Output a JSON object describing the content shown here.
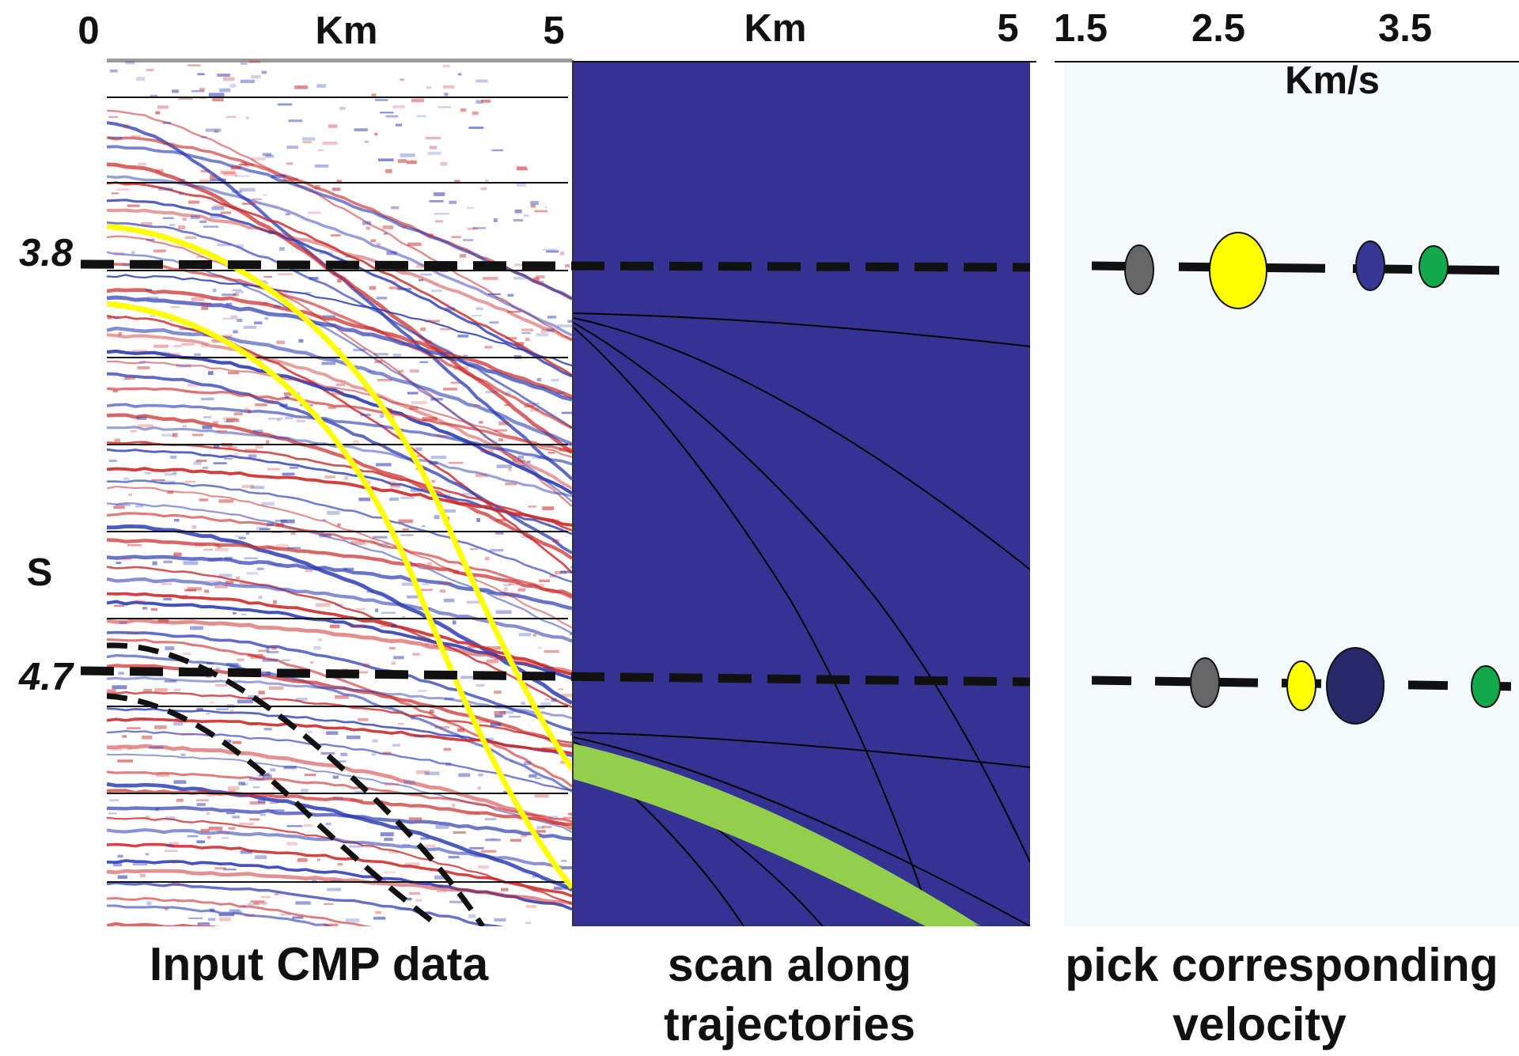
{
  "colors": {
    "seismic_red": "#cc2a2a",
    "seismic_blue": "#2a3ab5",
    "scan_panel": "#343393",
    "velocity_panel": "#f4fafa",
    "highlight_yellow": "#ffff00",
    "highlight_green": "#92cf4b",
    "dash": "#111111",
    "blob_gray": "#666666",
    "blob_yellow": "#ffff00",
    "blob_blue": "#363795",
    "blob_dark_blue": "#262869",
    "blob_green": "#12a84c"
  },
  "cmp_panel": {
    "axis_start": "0",
    "axis_unit": "Km",
    "axis_end": "5",
    "caption": "Input CMP data"
  },
  "scan_panel": {
    "axis_unit": "Km",
    "axis_end": "5",
    "caption_line1": "scan along",
    "caption_line2": "trajectories"
  },
  "velocity_panel": {
    "ticks": [
      "1.5",
      "2.5",
      "3.5"
    ],
    "axis_unit": "Km/s",
    "caption_line1": "pick corresponding",
    "caption_line2": "velocity"
  },
  "time_axis": {
    "unit": "S",
    "time_1": "3.8",
    "time_2": "4.7"
  },
  "velocity_picks": {
    "at_3.8": [
      {
        "velocity": 1.8,
        "color": "blob_gray",
        "size": "small"
      },
      {
        "velocity": 2.6,
        "color": "blob_yellow",
        "size": "large"
      },
      {
        "velocity": 3.3,
        "color": "blob_blue",
        "size": "small"
      },
      {
        "velocity": 3.65,
        "color": "blob_green",
        "size": "small"
      }
    ],
    "at_4.7": [
      {
        "velocity": 2.2,
        "color": "blob_gray",
        "size": "small"
      },
      {
        "velocity": 2.7,
        "color": "blob_yellow",
        "size": "small"
      },
      {
        "velocity": 3.2,
        "color": "blob_dark_blue",
        "size": "large"
      },
      {
        "velocity": 3.9,
        "color": "blob_green",
        "size": "small"
      }
    ]
  }
}
